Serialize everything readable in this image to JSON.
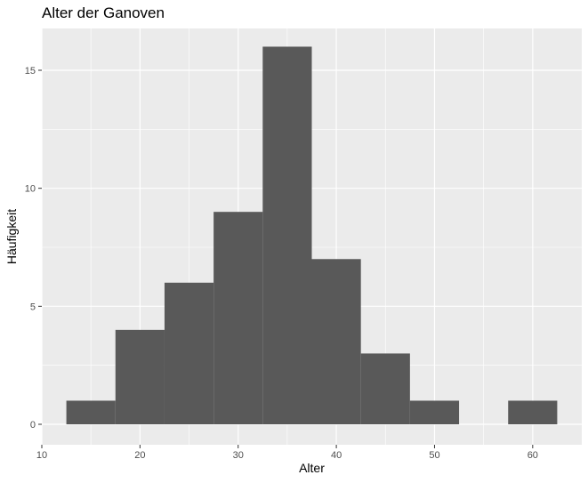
{
  "chart_data": {
    "type": "bar",
    "subtype": "histogram",
    "title": "Alter der Ganoven",
    "xlabel": "Alter",
    "ylabel": "Häufigkeit",
    "xlim": [
      10,
      65
    ],
    "ylim": [
      0,
      17
    ],
    "x_ticks": [
      10,
      20,
      30,
      40,
      50,
      60
    ],
    "y_ticks": [
      0,
      5,
      10,
      15
    ],
    "grid": true,
    "legend": "none",
    "bins": [
      {
        "x_start": 12.5,
        "x_end": 17.5,
        "count": 1
      },
      {
        "x_start": 17.5,
        "x_end": 22.5,
        "count": 4
      },
      {
        "x_start": 22.5,
        "x_end": 27.5,
        "count": 6
      },
      {
        "x_start": 27.5,
        "x_end": 32.5,
        "count": 9
      },
      {
        "x_start": 32.5,
        "x_end": 37.5,
        "count": 16
      },
      {
        "x_start": 37.5,
        "x_end": 42.5,
        "count": 7
      },
      {
        "x_start": 42.5,
        "x_end": 47.5,
        "count": 3
      },
      {
        "x_start": 47.5,
        "x_end": 52.5,
        "count": 1
      },
      {
        "x_start": 52.5,
        "x_end": 57.5,
        "count": 0
      },
      {
        "x_start": 57.5,
        "x_end": 62.5,
        "count": 1
      }
    ],
    "colors": {
      "panel_background": "#ebebeb",
      "grid_major": "#ffffff",
      "bar_fill": "#595959"
    }
  }
}
